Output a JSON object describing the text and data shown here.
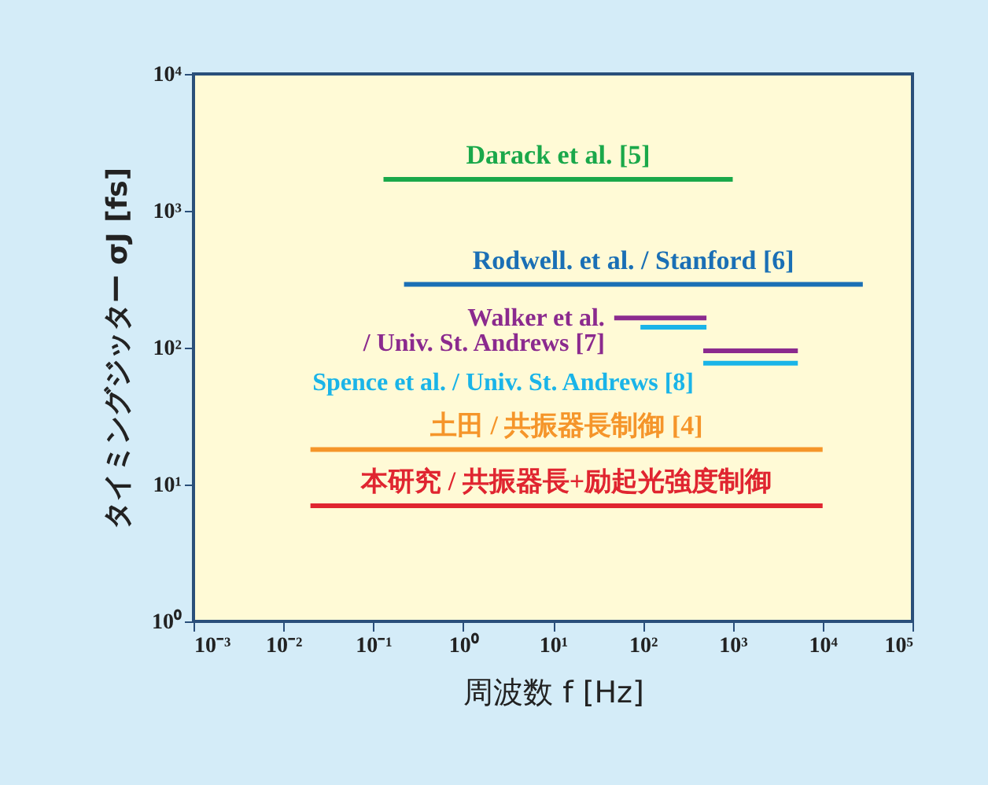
{
  "chart_data": {
    "type": "line",
    "xlabel": "周波数 f [Hz]",
    "ylabel": "タイミングジッター σJ [fs]",
    "log": "xy",
    "marker": "none",
    "line_style": "solid",
    "grid": false,
    "xlim": [
      0.001,
      100000
    ],
    "ylim": [
      1,
      10000
    ],
    "xticks": [
      {
        "value": 0.001,
        "label": "10⁻³"
      },
      {
        "value": 0.01,
        "label": "10⁻²"
      },
      {
        "value": 0.1,
        "label": "10⁻¹"
      },
      {
        "value": 1,
        "label": "10⁰"
      },
      {
        "value": 10,
        "label": "10¹"
      },
      {
        "value": 100,
        "label": "10²"
      },
      {
        "value": 1000,
        "label": "10³"
      },
      {
        "value": 10000,
        "label": "10⁴"
      },
      {
        "value": 100000,
        "label": "10⁵"
      }
    ],
    "yticks": [
      {
        "value": 1,
        "label": "10⁰"
      },
      {
        "value": 10,
        "label": "10¹"
      },
      {
        "value": 100,
        "label": "10²"
      },
      {
        "value": 1000,
        "label": "10³"
      },
      {
        "value": 10000,
        "label": "10⁴"
      }
    ],
    "series": [
      {
        "name": "Darack et al. [5]",
        "color": "#1aa84a",
        "x": [
          0.13,
          1000
        ],
        "values": [
          1700,
          1700
        ]
      },
      {
        "name": "Rodwell. et al. / Stanford [6]",
        "color": "#1a6fb5",
        "x": [
          0.22,
          28000
        ],
        "values": [
          290,
          290
        ]
      },
      {
        "name": "Walker et al.\n/ Univ. St. Andrews [7]",
        "color": "#8b2a8e",
        "x": [
          48,
          510
        ],
        "values": [
          165,
          165
        ]
      },
      {
        "color": "#8b2a8e",
        "x": [
          470,
          5300
        ],
        "values": [
          95,
          95
        ]
      },
      {
        "color": "#1ab4e8",
        "x": [
          94,
          510
        ],
        "values": [
          141,
          141
        ]
      },
      {
        "name": "Spence et al. / Univ. St. Andrews [8]",
        "color": "#1ab4e8",
        "x": [
          470,
          5300
        ],
        "values": [
          77,
          77
        ]
      },
      {
        "name": "土田 / 共振器長制御 [4]",
        "color": "#f5952a",
        "x": [
          0.02,
          10000
        ],
        "values": [
          18,
          18
        ]
      },
      {
        "name": "本研究 / 共振器長+励起光強度制御",
        "color": "#e02530",
        "x": [
          0.02,
          10000
        ],
        "values": [
          7,
          7
        ]
      }
    ]
  }
}
